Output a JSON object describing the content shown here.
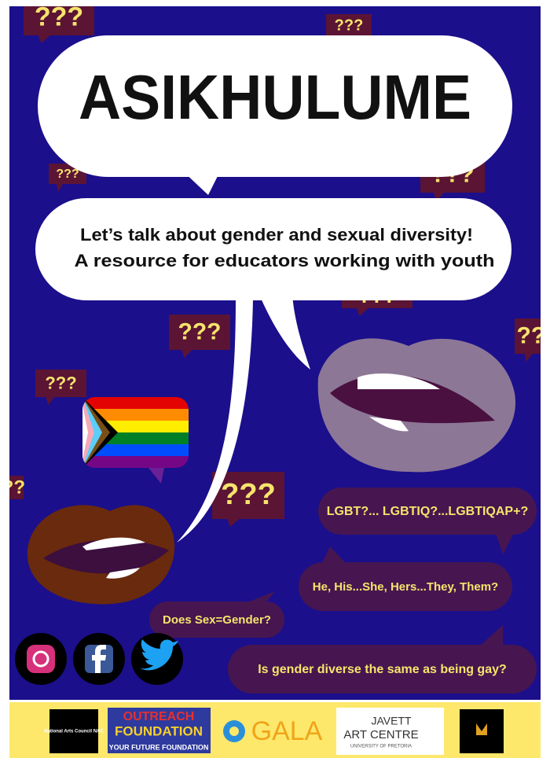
{
  "header": {
    "title": "ASIKHULUME",
    "subtitle": [
      "Let’s talk about gender and sexual diversity!",
      "A resource for educators working with youth"
    ]
  },
  "question_marks": [
    "???",
    "???",
    "???",
    "???",
    "???",
    "???",
    "???",
    "???",
    "???",
    "???"
  ],
  "speech_bubbles": [
    "LGBT?... LGBTIQ?...LGBTIQAP+?",
    "He, His...She, Hers...They, Them?",
    "Does Sex=Gender?",
    "Is gender diverse the same as being gay?"
  ],
  "footer": {
    "nac": "National Arts Council NAC",
    "outreach": [
      "OUTREACH",
      "FOUNDATION",
      "YOUR FUTURE FOUNDATION"
    ],
    "gala": "GALA",
    "javett": [
      "JAVETT",
      "ART CENTRE",
      "UNIVERSITY OF PRETORIA"
    ]
  }
}
